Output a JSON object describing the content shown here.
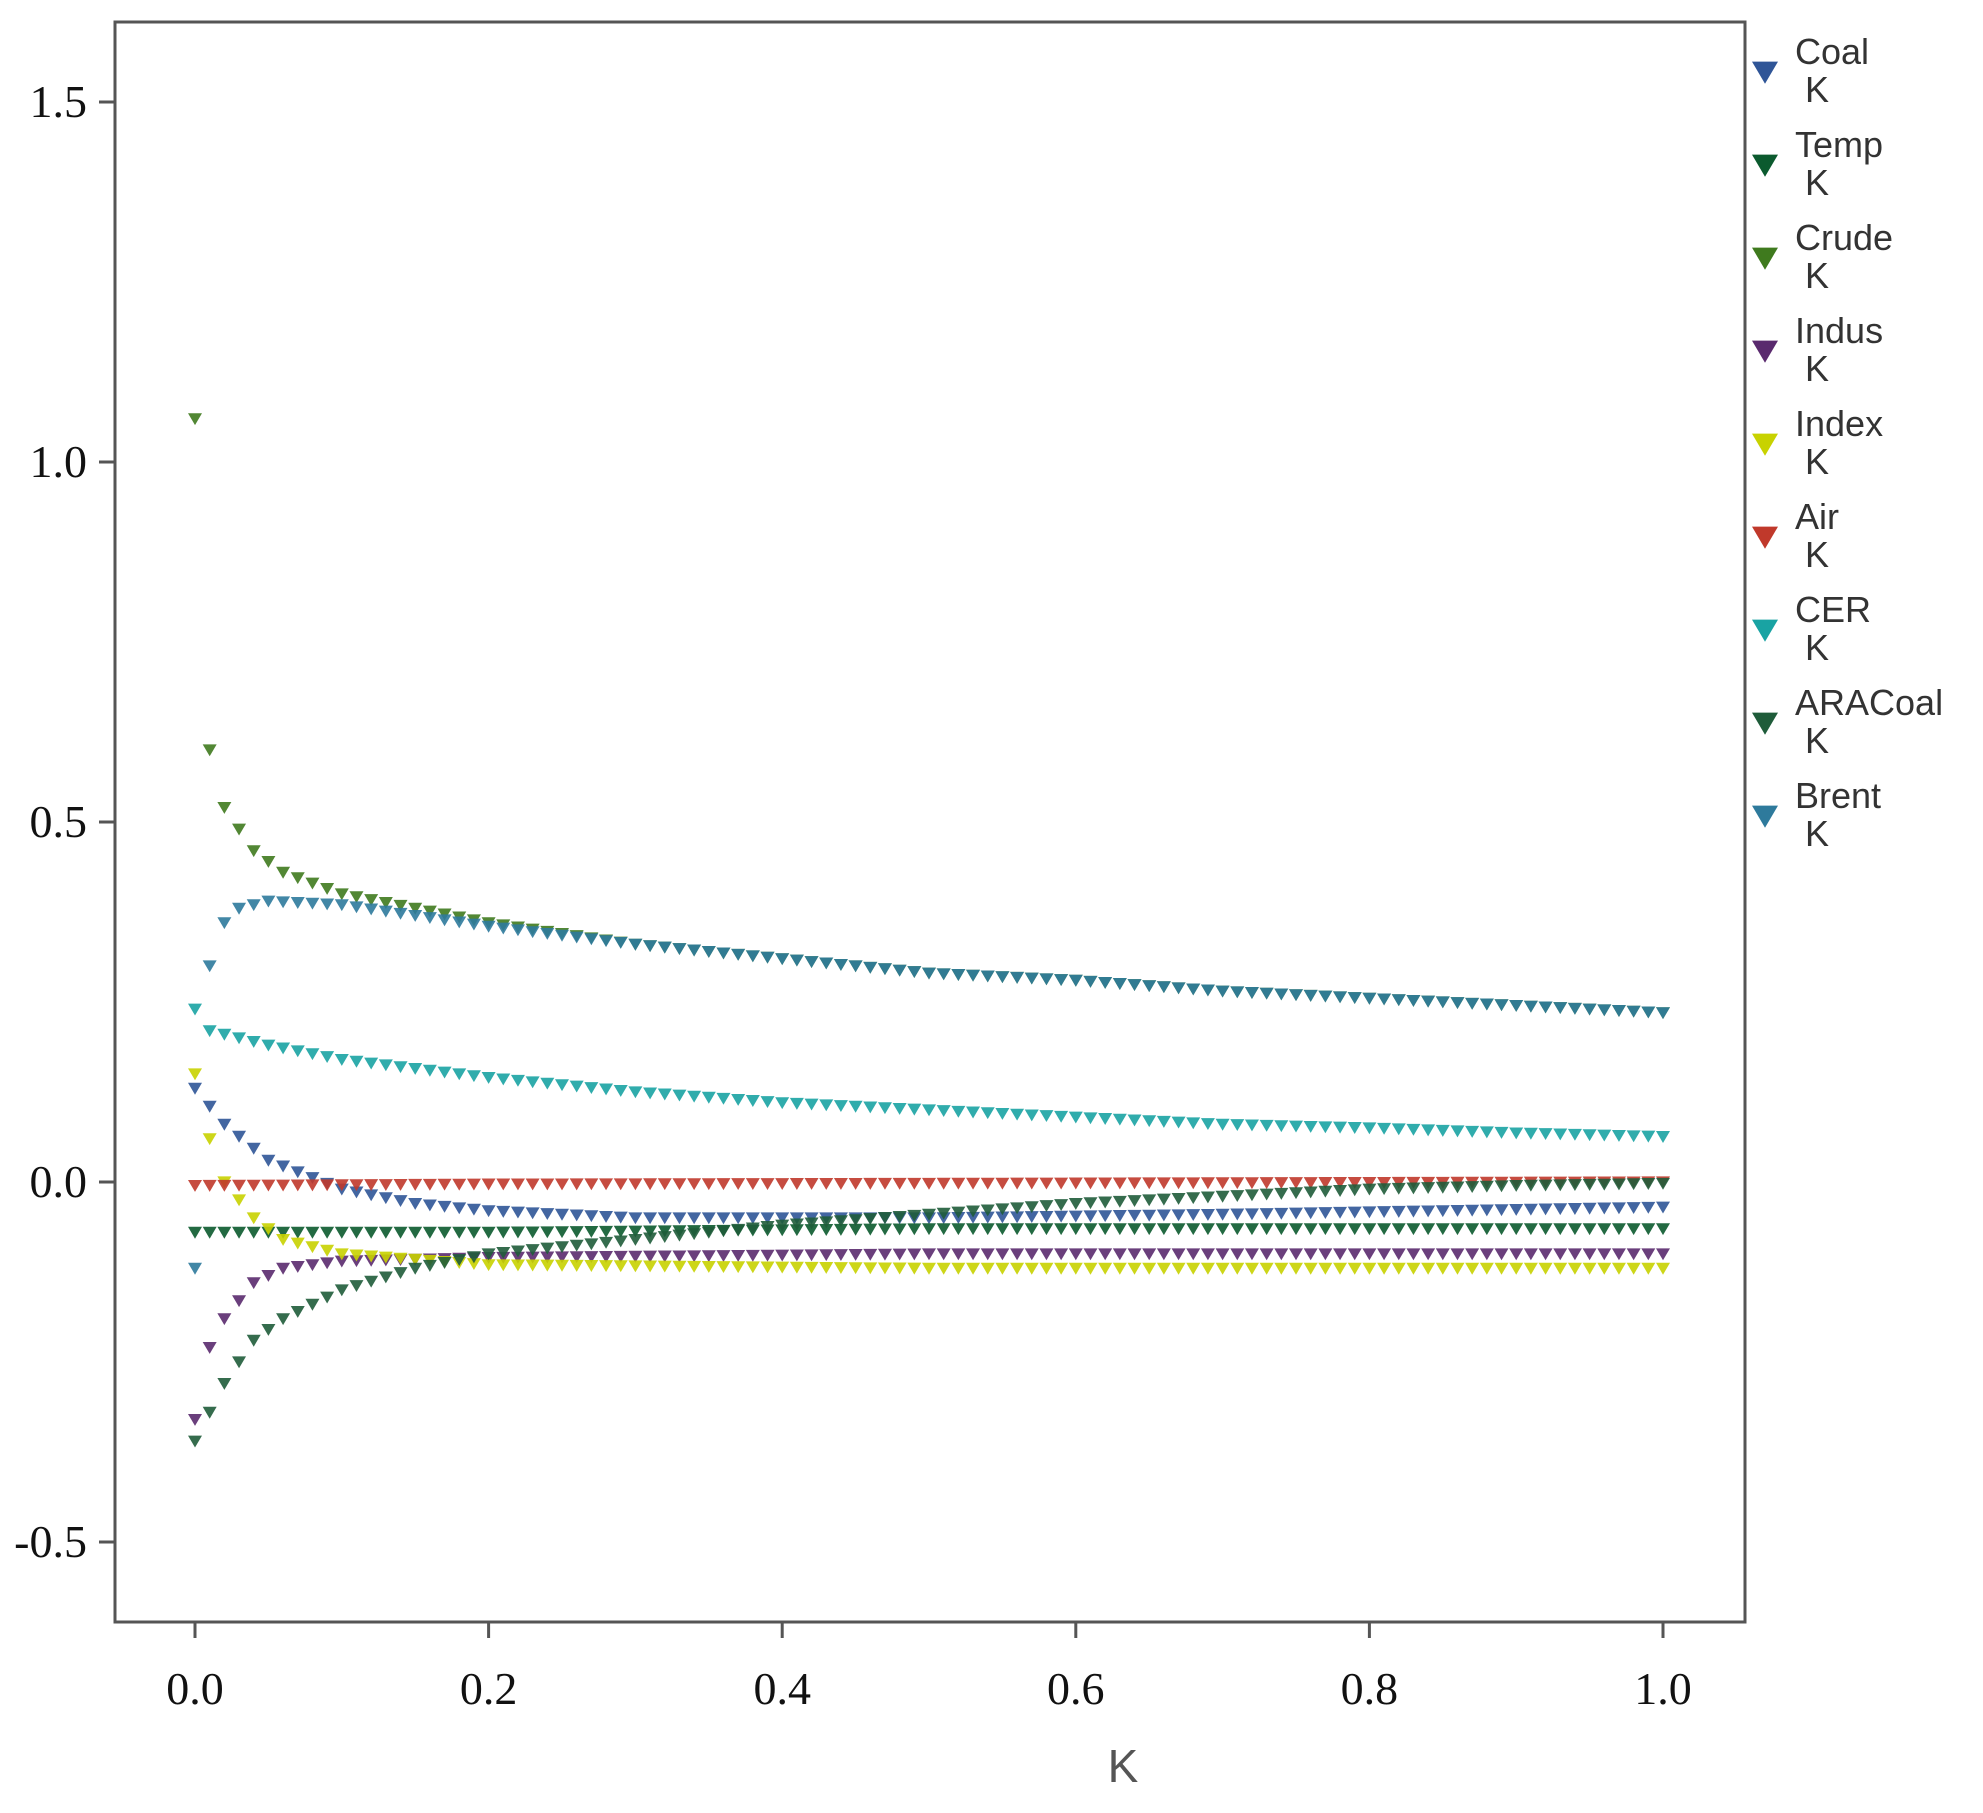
{
  "chart_data": {
    "type": "scatter",
    "title": "",
    "xlabel": "K",
    "ylabel": "",
    "xlim": [
      -0.1,
      1.05
    ],
    "ylim": [
      -0.6,
      1.6
    ],
    "x_ticks": [
      "0.0",
      "0.2",
      "0.4",
      "0.6",
      "0.8",
      "1.0"
    ],
    "x_tick_values": [
      0.0,
      0.2,
      0.4,
      0.6,
      0.8,
      1.0
    ],
    "y_ticks": [
      "-0.5",
      "0.0",
      "0.5",
      "1.0",
      "1.5"
    ],
    "y_tick_values": [
      -0.5,
      0.0,
      0.5,
      1.0,
      1.5
    ],
    "grid": false,
    "legend_position": "right",
    "k_grid": {
      "start": 0.0,
      "end": 1.0,
      "step": 0.01
    },
    "series": [
      {
        "name": "Coal",
        "sublabel": "K",
        "color": "#2f5597",
        "points": [
          [
            0.0,
            0.13
          ],
          [
            0.02,
            0.08
          ],
          [
            0.05,
            0.03
          ],
          [
            0.1,
            -0.01
          ],
          [
            0.15,
            -0.03
          ],
          [
            0.2,
            -0.04
          ],
          [
            0.3,
            -0.05
          ],
          [
            0.5,
            -0.05
          ],
          [
            0.7,
            -0.045
          ],
          [
            1.0,
            -0.035
          ]
        ]
      },
      {
        "name": "Temp",
        "sublabel": "K",
        "color": "#0b5a2e",
        "points": [
          [
            0.0,
            -0.07
          ],
          [
            0.2,
            -0.07
          ],
          [
            0.5,
            -0.065
          ],
          [
            0.8,
            -0.065
          ],
          [
            1.0,
            -0.065
          ]
        ]
      },
      {
        "name": "Crude",
        "sublabel": "K",
        "color": "#3f7a1e",
        "points": [
          [
            0.0,
            1.06
          ],
          [
            0.01,
            0.6
          ],
          [
            0.02,
            0.52
          ],
          [
            0.04,
            0.46
          ],
          [
            0.06,
            0.43
          ],
          [
            0.1,
            0.4
          ],
          [
            0.15,
            0.38
          ],
          [
            0.2,
            0.36
          ],
          [
            0.3,
            0.33
          ],
          [
            0.4,
            0.31
          ],
          [
            0.5,
            0.29
          ],
          [
            0.6,
            0.28
          ],
          [
            0.7,
            0.265
          ],
          [
            0.8,
            0.255
          ],
          [
            0.9,
            0.245
          ],
          [
            1.0,
            0.235
          ]
        ]
      },
      {
        "name": "Indus",
        "sublabel": "K",
        "color": "#5a2a6e",
        "points": [
          [
            0.0,
            -0.33
          ],
          [
            0.01,
            -0.23
          ],
          [
            0.02,
            -0.19
          ],
          [
            0.04,
            -0.14
          ],
          [
            0.06,
            -0.12
          ],
          [
            0.1,
            -0.11
          ],
          [
            0.2,
            -0.105
          ],
          [
            0.5,
            -0.1
          ],
          [
            1.0,
            -0.1
          ]
        ]
      },
      {
        "name": "Index",
        "sublabel": "K",
        "color": "#c8d200",
        "points": [
          [
            0.0,
            0.15
          ],
          [
            0.01,
            0.06
          ],
          [
            0.02,
            0.0
          ],
          [
            0.04,
            -0.05
          ],
          [
            0.06,
            -0.08
          ],
          [
            0.1,
            -0.1
          ],
          [
            0.2,
            -0.115
          ],
          [
            0.5,
            -0.12
          ],
          [
            1.0,
            -0.12
          ]
        ]
      },
      {
        "name": "Air",
        "sublabel": "K",
        "color": "#c0392b",
        "points": [
          [
            0.0,
            -0.005
          ],
          [
            0.2,
            -0.003
          ],
          [
            0.5,
            -0.002
          ],
          [
            1.0,
            0.0
          ]
        ]
      },
      {
        "name": "CER",
        "sublabel": "K",
        "color": "#19a3a3",
        "points": [
          [
            0.0,
            0.24
          ],
          [
            0.01,
            0.21
          ],
          [
            0.03,
            0.2
          ],
          [
            0.05,
            0.19
          ],
          [
            0.1,
            0.17
          ],
          [
            0.2,
            0.145
          ],
          [
            0.3,
            0.125
          ],
          [
            0.4,
            0.11
          ],
          [
            0.5,
            0.1
          ],
          [
            0.6,
            0.09
          ],
          [
            0.7,
            0.08
          ],
          [
            0.8,
            0.075
          ],
          [
            0.9,
            0.068
          ],
          [
            1.0,
            0.063
          ]
        ]
      },
      {
        "name": "ARACoal",
        "sublabel": "K",
        "color": "#1f5c3a",
        "points": [
          [
            0.0,
            -0.36
          ],
          [
            0.01,
            -0.32
          ],
          [
            0.02,
            -0.28
          ],
          [
            0.04,
            -0.22
          ],
          [
            0.06,
            -0.19
          ],
          [
            0.1,
            -0.15
          ],
          [
            0.15,
            -0.12
          ],
          [
            0.2,
            -0.1
          ],
          [
            0.3,
            -0.08
          ],
          [
            0.4,
            -0.06
          ],
          [
            0.5,
            -0.045
          ],
          [
            0.6,
            -0.03
          ],
          [
            0.7,
            -0.02
          ],
          [
            0.8,
            -0.01
          ],
          [
            0.9,
            -0.005
          ],
          [
            1.0,
            -0.002
          ]
        ]
      },
      {
        "name": "Brent",
        "sublabel": "K",
        "color": "#2e7a9c",
        "points": [
          [
            0.0,
            -0.12
          ],
          [
            0.01,
            0.3
          ],
          [
            0.02,
            0.36
          ],
          [
            0.03,
            0.38
          ],
          [
            0.05,
            0.39
          ],
          [
            0.1,
            0.385
          ],
          [
            0.15,
            0.37
          ],
          [
            0.2,
            0.355
          ],
          [
            0.3,
            0.33
          ],
          [
            0.4,
            0.31
          ],
          [
            0.5,
            0.29
          ],
          [
            0.6,
            0.28
          ],
          [
            0.7,
            0.265
          ],
          [
            0.8,
            0.255
          ],
          [
            0.9,
            0.245
          ],
          [
            1.0,
            0.235
          ]
        ]
      }
    ]
  }
}
